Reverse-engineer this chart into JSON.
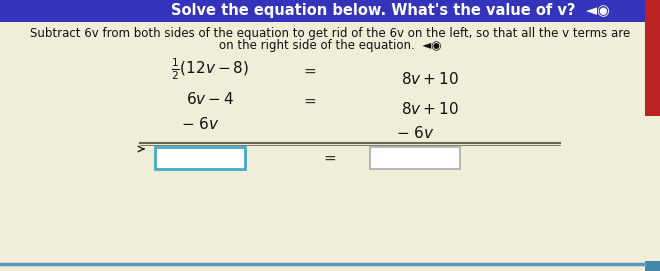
{
  "bg_color": "#f0edd8",
  "header_bg": "#3333bb",
  "header_text": "Solve the equation below. What's the value of v?  ◄◉",
  "header_text_color": "#ffffff",
  "instruction_line1": "Subtract 6v from both sides of the equation to get rid of the 6v on the left, so that all the v terms are",
  "instruction_line2": "on the right side of the equation.  ◄◉",
  "instruction_color": "#111111",
  "row1_left": "$\\frac{1}{2}(12v-8)$",
  "row1_eq": "=",
  "row1_right": "$8v+10$",
  "row2_left": "$6v-4$",
  "row2_eq": "=",
  "row2_right": "$8v+10$",
  "row3_left": "$-\\ 6v$",
  "row3_right": "$-\\ 6v$",
  "line_color": "#666655",
  "box_edge_color": "#44aacc",
  "box_face_color": "#ffffff",
  "right_bar_color": "#bb2222",
  "right_bar2_color": "#4488aa",
  "font_size_header": 10.5,
  "font_size_instr": 8.5,
  "font_size_eq": 11,
  "font_size_small": 9
}
